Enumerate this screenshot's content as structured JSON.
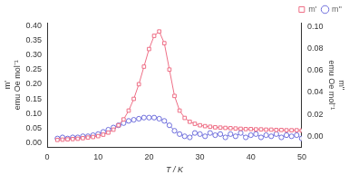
{
  "chart_data": {
    "type": "line",
    "xlabel": "T / K",
    "ylabel": [
      "m'",
      "emu Oe mol⁻¹"
    ],
    "y2label": [
      "m''",
      "emu Oe mol⁻¹"
    ],
    "x": [
      2,
      3,
      4,
      5,
      6,
      7,
      8,
      9,
      10,
      11,
      12,
      13,
      14,
      15,
      16,
      17,
      18,
      19,
      20,
      21,
      22,
      23,
      24,
      25,
      26,
      27,
      28,
      29,
      30,
      31,
      32,
      33,
      34,
      35,
      36,
      37,
      38,
      39,
      40,
      41,
      42,
      43,
      44,
      45,
      46,
      47,
      48,
      49,
      50
    ],
    "xlim": [
      0,
      50
    ],
    "xticks": [
      0,
      10,
      20,
      30,
      40,
      50
    ],
    "ylim": [
      -0.015,
      0.41
    ],
    "yticks": [
      {
        "value": 0,
        "label": "0.00"
      },
      {
        "value": 0.05,
        "label": "0.05"
      },
      {
        "value": 0.1,
        "label": "0.10"
      },
      {
        "value": 0.15,
        "label": "0.15"
      },
      {
        "value": 0.2,
        "label": "0.20"
      },
      {
        "value": 0.25,
        "label": "0.25"
      },
      {
        "value": 0.3,
        "label": "0.30"
      },
      {
        "value": 0.35,
        "label": "0.35"
      },
      {
        "value": 0.4,
        "label": "0.40"
      }
    ],
    "y2lim": [
      -0.01,
      0.1035
    ],
    "y2ticks": [
      {
        "value": 0,
        "label": "0.00"
      },
      {
        "value": 0.02,
        "label": "0.02"
      },
      {
        "value": 0.04,
        "label": "0.04"
      },
      {
        "value": 0.06,
        "label": "0.06"
      },
      {
        "value": 0.08,
        "label": "0.08"
      },
      {
        "value": 0.1,
        "label": "0.10"
      }
    ],
    "grid": false,
    "legend": "top right",
    "series": [
      {
        "name": "m'",
        "color": "#ee6f86",
        "marker": "square",
        "line_style": "solid",
        "axis": "y",
        "values": [
          0.01,
          0.011,
          0.012,
          0.013,
          0.014,
          0.016,
          0.018,
          0.02,
          0.023,
          0.028,
          0.035,
          0.045,
          0.06,
          0.08,
          0.11,
          0.15,
          0.2,
          0.26,
          0.32,
          0.365,
          0.38,
          0.34,
          0.25,
          0.16,
          0.11,
          0.085,
          0.072,
          0.065,
          0.06,
          0.057,
          0.055,
          0.053,
          0.052,
          0.051,
          0.05,
          0.049,
          0.048,
          0.047,
          0.047,
          0.046,
          0.046,
          0.045,
          0.045,
          0.044,
          0.044,
          0.043,
          0.043,
          0.043,
          0.042
        ]
      },
      {
        "name": "m''",
        "color": "#6f6fdc",
        "marker": "circle",
        "line_style": "solid",
        "axis": "y2",
        "values": [
          -0.002,
          -0.001,
          -0.002,
          -0.001,
          -0.001,
          0.0,
          0.0,
          0.001,
          0.002,
          0.004,
          0.006,
          0.008,
          0.01,
          0.012,
          0.014,
          0.015,
          0.016,
          0.017,
          0.017,
          0.017,
          0.016,
          0.014,
          0.01,
          0.005,
          0.002,
          0.0,
          -0.001,
          0.003,
          0.002,
          0.0,
          0.003,
          0.001,
          0.002,
          -0.001,
          0.002,
          0.0,
          0.003,
          -0.001,
          0.001,
          0.002,
          -0.001,
          0.001,
          0.0,
          0.002,
          -0.001,
          0.001,
          0.0,
          0.001,
          -0.002
        ]
      }
    ]
  }
}
